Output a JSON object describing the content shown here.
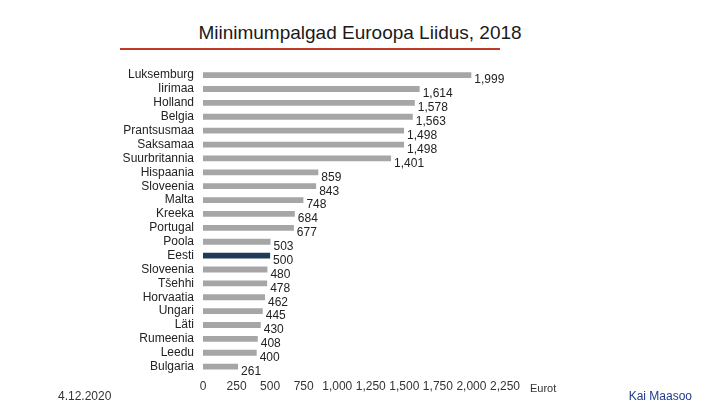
{
  "chart_data": {
    "type": "bar",
    "orientation": "horizontal",
    "title": "Miinimumpalgad Euroopa Liidus, 2018",
    "x_label": "Eurot",
    "annotations": [
      "4.12.2020",
      "Kai Maasoo"
    ],
    "categories": [
      "Luksemburg",
      "Iirimaa",
      "Holland",
      "Belgia",
      "Prantsusmaa",
      "Saksamaa",
      "Suurbritannia",
      "Hispaania",
      "Sloveenia",
      "Malta",
      "Kreeka",
      "Portugal",
      "Poola",
      "Eesti",
      "Sloveenia",
      "Tšehhi",
      "Horvaatia",
      "Ungari",
      "Läti",
      "Rumeenia",
      "Leedu",
      "Bulgaria"
    ],
    "values": [
      1999,
      1614,
      1578,
      1563,
      1498,
      1498,
      1401,
      859,
      843,
      748,
      684,
      677,
      503,
      500,
      480,
      478,
      462,
      445,
      430,
      408,
      400,
      261
    ],
    "value_labels": [
      "1,999",
      "1,614",
      "1,578",
      "1,563",
      "1,498",
      "1,498",
      "1,401",
      "859",
      "843",
      "748",
      "684",
      "677",
      "503",
      "500",
      "480",
      "478",
      "462",
      "445",
      "430",
      "408",
      "400",
      "261"
    ],
    "colors": [
      "#a6a6a6",
      "#a6a6a6",
      "#a6a6a6",
      "#a6a6a6",
      "#a6a6a6",
      "#a6a6a6",
      "#a6a6a6",
      "#a6a6a6",
      "#a6a6a6",
      "#a6a6a6",
      "#a6a6a6",
      "#a6a6a6",
      "#a6a6a6",
      "#1f3b57",
      "#a6a6a6",
      "#a6a6a6",
      "#a6a6a6",
      "#a6a6a6",
      "#a6a6a6",
      "#a6a6a6",
      "#a6a6a6",
      "#a6a6a6"
    ],
    "xlim": [
      0,
      2250
    ],
    "xticks": [
      0,
      250,
      500,
      750,
      {
        "value": 1000,
        "label": "1,000"
      },
      {
        "value": 1250,
        "label": "1,250"
      },
      {
        "value": 1500,
        "label": "1,500"
      },
      {
        "value": 1750,
        "label": "1,750"
      },
      {
        "value": 2000,
        "label": "2,000"
      },
      {
        "value": 2250,
        "label": "2,250"
      }
    ],
    "grid": false,
    "data_labels": true
  }
}
